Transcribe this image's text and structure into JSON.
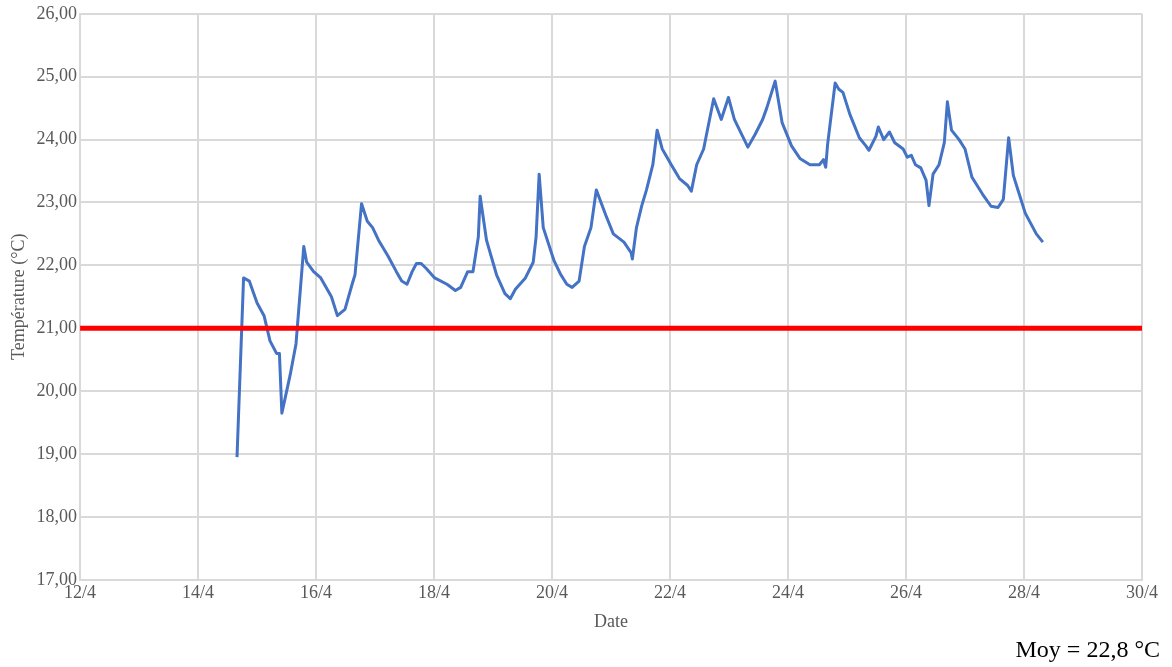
{
  "chart_data": {
    "type": "line",
    "xlabel": "Date",
    "ylabel": "Température (°C)",
    "x": [
      "--04-14T15:50",
      "--04-14T18:30",
      "--04-14T20:50",
      "--04-15T00:00",
      "--04-15T02:50",
      "--04-15T05:15",
      "--04-15T07:55",
      "--04-15T09:05",
      "--04-15T10:05",
      "--04-15T13:25",
      "--04-15T15:50",
      "--04-15T19:00",
      "--04-15T20:10",
      "--04-15T23:00",
      "--04-16T01:55",
      "--04-16T06:15",
      "--04-16T08:40",
      "--04-16T11:45",
      "--04-16T14:40",
      "--04-16T15:50",
      "--04-16T18:30",
      "--04-16T20:50",
      "--04-16T23:00",
      "--04-17T01:25",
      "--04-17T05:15",
      "--04-17T08:40",
      "--04-17T10:50",
      "--04-17T13:00",
      "--04-17T15:05",
      "--04-17T16:50",
      "--04-17T18:45",
      "--04-17T20:50",
      "--04-18T00:15",
      "--04-18T05:15",
      "--04-18T08:40",
      "--04-18T10:50",
      "--04-18T13:40",
      "--04-18T15:50",
      "--04-18T18:00",
      "--04-18T18:45",
      "--04-18T21:20",
      "--04-19T01:25",
      "--04-19T04:50",
      "--04-19T07:00",
      "--04-19T09:05",
      "--04-19T13:10",
      "--04-19T16:20",
      "--04-19T17:30",
      "--04-19T18:45",
      "--04-19T20:25",
      "--04-20T00:45",
      "--04-20T03:35",
      "--04-20T06:00",
      "--04-20T08:10",
      "--04-20T11:00",
      "--04-20T13:10",
      "--04-20T15:50",
      "--04-20T18:00",
      "--04-20T21:50",
      "--04-21T00:55",
      "--04-21T05:15",
      "--04-21T08:10",
      "--04-21T08:40",
      "--04-21T10:20",
      "--04-21T12:30",
      "--04-21T14:25",
      "--04-21T17:00",
      "--04-21T18:45",
      "--04-21T20:50",
      "--04-22T00:30",
      "--04-22T03:50",
      "--04-22T07:10",
      "--04-22T08:40",
      "--04-22T10:50",
      "--04-22T13:40",
      "--04-22T17:45",
      "--04-22T20:50",
      "--04-22T23:45",
      "--04-23T02:10",
      "--04-23T07:40",
      "--04-23T10:35",
      "--04-23T13:40",
      "--04-23T15:20",
      "--04-23T18:45",
      "--04-23T21:35",
      "--04-24T01:25",
      "--04-24T04:50",
      "--04-24T08:55",
      "--04-24T10:35",
      "--04-24T12:45",
      "--04-24T14:25",
      "--04-24T15:20",
      "--04-24T16:05",
      "--04-24T19:10",
      "--04-24T20:40",
      "--04-24T22:20",
      "--04-25T01:10",
      "--04-25T05:00",
      "--04-25T07:40",
      "--04-25T08:55",
      "--04-25T11:45",
      "--04-25T12:45",
      "--04-25T14:55",
      "--04-25T17:15",
      "--04-25T19:25",
      "--04-25T22:50",
      "--04-26T00:30",
      "--04-26T02:10",
      "--04-26T03:50",
      "--04-26T06:00",
      "--04-26T08:10",
      "--04-26T09:20",
      "--04-26T11:00",
      "--04-26T13:25",
      "--04-26T15:35",
      "--04-26T16:50",
      "--04-26T18:30",
      "--04-26T21:35",
      "--04-27T00:00",
      "--04-27T02:50",
      "--04-27T07:10",
      "--04-27T10:35",
      "--04-27T13:25",
      "--04-27T15:35",
      "--04-27T17:45",
      "--04-27T19:40",
      "--04-28T00:30",
      "--04-28T05:00",
      "--04-28T07:40"
    ],
    "series": [
      {
        "color": "#4472c4",
        "values": [
          18.95,
          21.8,
          21.75,
          21.4,
          21.2,
          20.8,
          20.6,
          20.6,
          19.65,
          20.25,
          20.75,
          22.3,
          22.05,
          21.9,
          21.8,
          21.5,
          21.2,
          21.3,
          21.7,
          21.85,
          22.98,
          22.7,
          22.6,
          22.4,
          22.15,
          21.9,
          21.75,
          21.7,
          21.9,
          22.03,
          22.03,
          21.95,
          21.8,
          21.7,
          21.6,
          21.65,
          21.9,
          21.9,
          22.45,
          23.1,
          22.4,
          21.85,
          21.55,
          21.47,
          21.62,
          21.8,
          22.05,
          22.45,
          23.45,
          22.6,
          22.08,
          21.85,
          21.7,
          21.65,
          21.75,
          22.3,
          22.6,
          23.2,
          22.8,
          22.5,
          22.37,
          22.2,
          22.1,
          22.6,
          22.95,
          23.2,
          23.6,
          24.15,
          23.85,
          23.6,
          23.38,
          23.27,
          23.18,
          23.6,
          23.85,
          24.65,
          24.32,
          24.67,
          24.32,
          23.88,
          24.08,
          24.32,
          24.5,
          24.93,
          24.27,
          23.9,
          23.7,
          23.6,
          23.6,
          23.6,
          23.68,
          23.56,
          23.92,
          24.9,
          24.8,
          24.75,
          24.4,
          24.03,
          23.9,
          23.83,
          24.05,
          24.2,
          24.0,
          24.12,
          23.95,
          23.85,
          23.72,
          23.75,
          23.6,
          23.55,
          23.35,
          22.95,
          23.45,
          23.6,
          23.95,
          24.6,
          24.15,
          24.0,
          23.85,
          23.4,
          23.13,
          22.94,
          22.92,
          23.05,
          24.03,
          23.43,
          22.83,
          22.5,
          22.37
        ]
      }
    ],
    "xlim": [
      "--04-12",
      "--04-30"
    ],
    "xticks": [
      {
        "value": "--04-12",
        "label": "12/4"
      },
      {
        "value": "--04-14",
        "label": "14/4"
      },
      {
        "value": "--04-16",
        "label": "16/4"
      },
      {
        "value": "--04-18",
        "label": "18/4"
      },
      {
        "value": "--04-20",
        "label": "20/4"
      },
      {
        "value": "--04-22",
        "label": "22/4"
      },
      {
        "value": "--04-24",
        "label": "24/4"
      },
      {
        "value": "--04-26",
        "label": "26/4"
      },
      {
        "value": "--04-28",
        "label": "28/4"
      },
      {
        "value": "--04-30",
        "label": "30/4"
      }
    ],
    "ylim": [
      17,
      26
    ],
    "yticks": [
      {
        "value": 17,
        "label": "17,00"
      },
      {
        "value": 18,
        "label": "18,00"
      },
      {
        "value": 19,
        "label": "19,00"
      },
      {
        "value": 20,
        "label": "20,00"
      },
      {
        "value": 21,
        "label": "21,00"
      },
      {
        "value": 22,
        "label": "22,00"
      },
      {
        "value": 23,
        "label": "23,00"
      },
      {
        "value": 24,
        "label": "24,00"
      },
      {
        "value": 25,
        "label": "25,00"
      },
      {
        "value": 26,
        "label": "26,00"
      }
    ],
    "ref_lines": [
      {
        "axis": "y",
        "value": 21,
        "color": "#ff0000"
      }
    ],
    "grid": true,
    "marker": "none",
    "line_style": "solid",
    "annotations": [
      "Moy = 22,8 °C"
    ]
  }
}
